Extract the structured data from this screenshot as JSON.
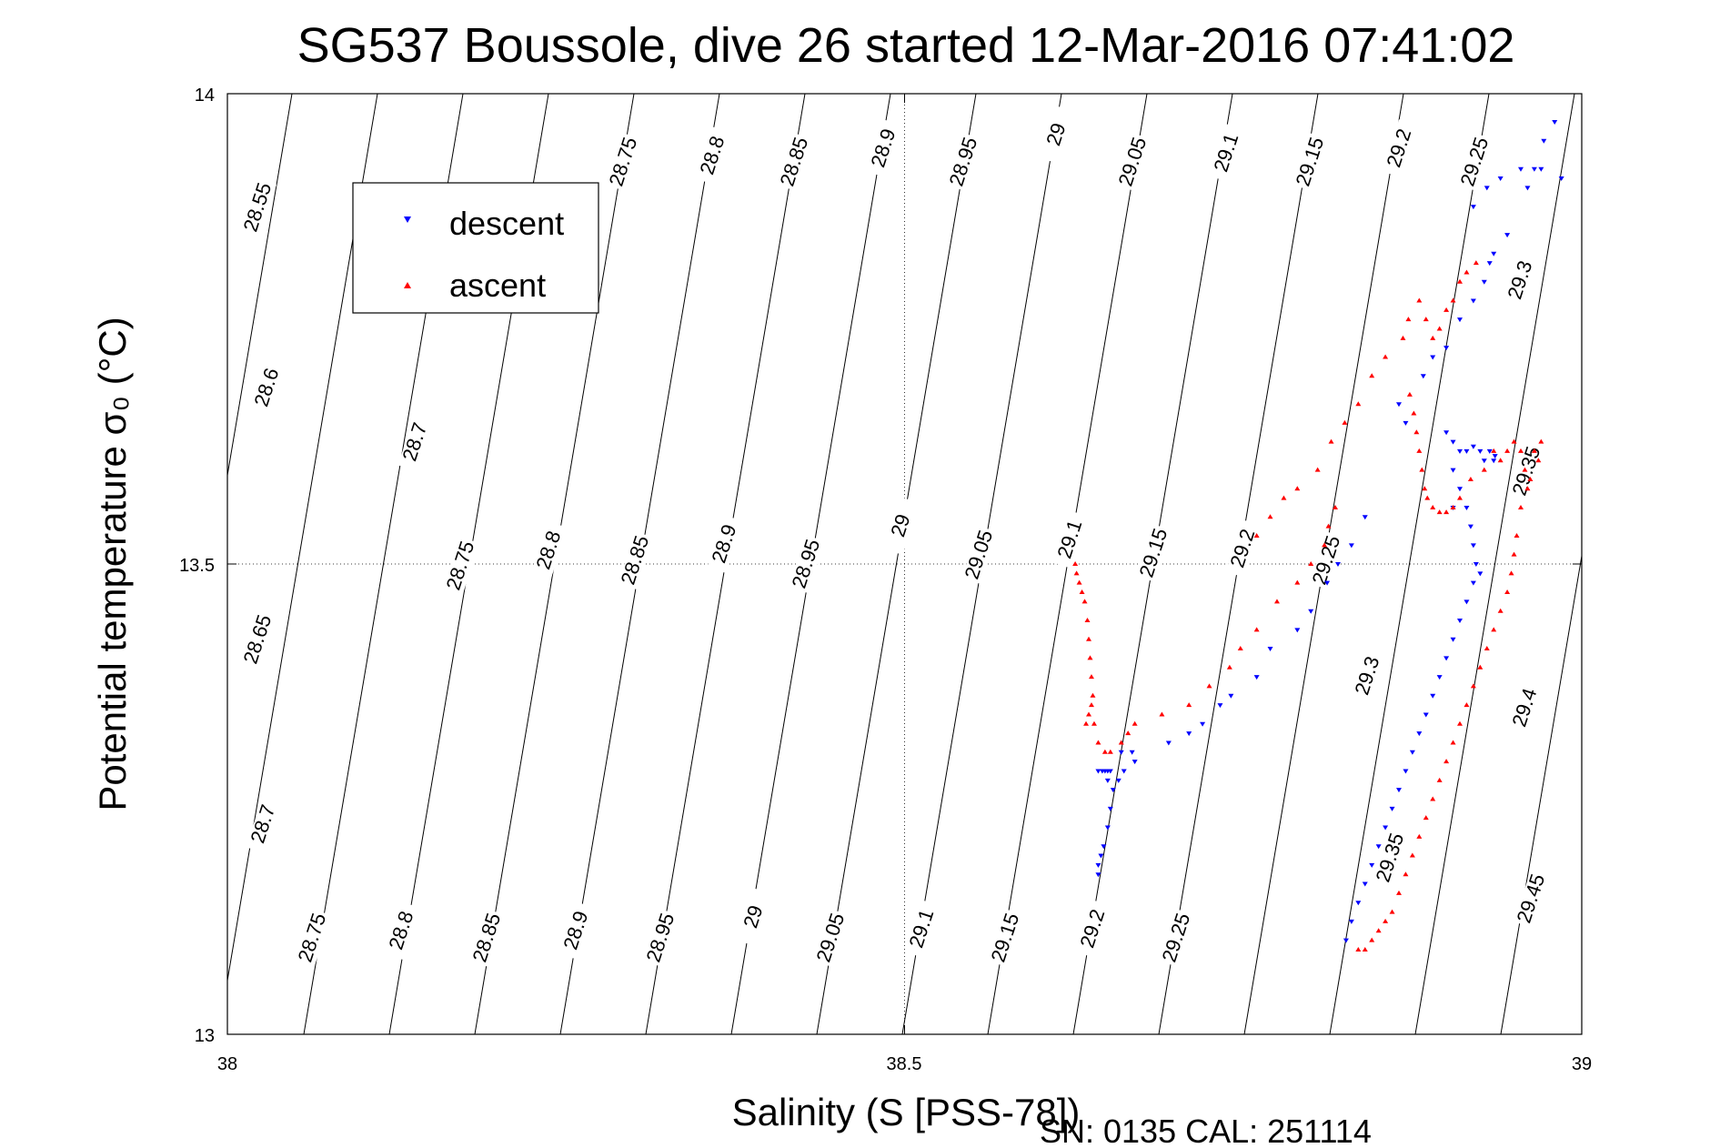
{
  "chart_data": {
    "type": "scatter",
    "title": "SG537 Boussole, dive 26 started 12-Mar-2016 07:41:02",
    "xlabel": "Salinity (S [PSS-78])",
    "ylabel": "Potential temperature σ₀ (°C)",
    "xlim": [
      38,
      39
    ],
    "ylim": [
      13,
      14
    ],
    "xticks": [
      "38",
      "38.5",
      "39"
    ],
    "yticks": [
      "13",
      "13.5",
      "14"
    ],
    "grid": true,
    "legend_position": "top-left",
    "footer": "SN: 0135  CAL: 251114",
    "isopycnal_labels": [
      "28.55",
      "28.6",
      "28.65",
      "28.7",
      "28.75",
      "28.8",
      "28.85",
      "28.9",
      "28.95",
      "29",
      "29.05",
      "29.1",
      "29.15",
      "29.2",
      "29.25",
      "29.3",
      "29.35",
      "29.4",
      "29.45"
    ],
    "series": [
      {
        "name": "descent",
        "color": "#0000ff",
        "marker": "triangle-down",
        "points": [
          [
            38.643,
            13.17
          ],
          [
            38.643,
            13.18
          ],
          [
            38.645,
            13.19
          ],
          [
            38.647,
            13.2
          ],
          [
            38.65,
            13.22
          ],
          [
            38.652,
            13.24
          ],
          [
            38.654,
            13.26
          ],
          [
            38.658,
            13.27
          ],
          [
            38.662,
            13.28
          ],
          [
            38.643,
            13.28
          ],
          [
            38.646,
            13.28
          ],
          [
            38.648,
            13.28
          ],
          [
            38.65,
            13.28
          ],
          [
            38.652,
            13.28
          ],
          [
            38.65,
            13.27
          ],
          [
            38.66,
            13.3
          ],
          [
            38.668,
            13.3
          ],
          [
            38.67,
            13.29
          ],
          [
            38.695,
            13.31
          ],
          [
            38.71,
            13.32
          ],
          [
            38.72,
            13.33
          ],
          [
            38.733,
            13.35
          ],
          [
            38.741,
            13.36
          ],
          [
            38.76,
            13.38
          ],
          [
            38.77,
            13.41
          ],
          [
            38.79,
            13.43
          ],
          [
            38.8,
            13.45
          ],
          [
            38.812,
            13.48
          ],
          [
            38.82,
            13.5
          ],
          [
            38.83,
            13.52
          ],
          [
            38.84,
            13.55
          ],
          [
            38.865,
            13.67
          ],
          [
            38.87,
            13.65
          ],
          [
            38.883,
            13.7
          ],
          [
            38.89,
            13.72
          ],
          [
            38.9,
            13.73
          ],
          [
            38.91,
            13.76
          ],
          [
            38.92,
            13.78
          ],
          [
            38.928,
            13.8
          ],
          [
            38.932,
            13.82
          ],
          [
            38.935,
            13.83
          ],
          [
            38.945,
            13.85
          ],
          [
            38.96,
            13.9
          ],
          [
            38.965,
            13.92
          ],
          [
            38.972,
            13.95
          ],
          [
            38.98,
            13.97
          ],
          [
            38.92,
            13.88
          ],
          [
            38.93,
            13.9
          ],
          [
            38.94,
            13.91
          ],
          [
            38.955,
            13.92
          ],
          [
            38.97,
            13.92
          ],
          [
            38.985,
            13.91
          ],
          [
            38.9,
            13.64
          ],
          [
            38.905,
            13.63
          ],
          [
            38.91,
            13.62
          ],
          [
            38.915,
            13.62
          ],
          [
            38.92,
            13.625
          ],
          [
            38.925,
            13.62
          ],
          [
            38.928,
            13.61
          ],
          [
            38.932,
            13.62
          ],
          [
            38.936,
            13.615
          ],
          [
            38.905,
            13.6
          ],
          [
            38.91,
            13.58
          ],
          [
            38.915,
            13.56
          ],
          [
            38.918,
            13.54
          ],
          [
            38.92,
            13.52
          ],
          [
            38.922,
            13.5
          ],
          [
            38.925,
            13.49
          ],
          [
            38.92,
            13.48
          ],
          [
            38.915,
            13.46
          ],
          [
            38.91,
            13.44
          ],
          [
            38.905,
            13.42
          ],
          [
            38.9,
            13.4
          ],
          [
            38.895,
            13.38
          ],
          [
            38.89,
            13.36
          ],
          [
            38.885,
            13.34
          ],
          [
            38.88,
            13.32
          ],
          [
            38.875,
            13.3
          ],
          [
            38.87,
            13.28
          ],
          [
            38.865,
            13.26
          ],
          [
            38.86,
            13.24
          ],
          [
            38.855,
            13.22
          ],
          [
            38.85,
            13.2
          ],
          [
            38.845,
            13.18
          ],
          [
            38.84,
            13.16
          ],
          [
            38.835,
            13.14
          ],
          [
            38.83,
            13.12
          ],
          [
            38.826,
            13.1
          ],
          [
            38.905,
            13.56
          ],
          [
            38.935,
            13.61
          ]
        ]
      },
      {
        "name": "ascent",
        "color": "#ff0000",
        "marker": "triangle-up",
        "points": [
          [
            38.626,
            13.5
          ],
          [
            38.627,
            13.49
          ],
          [
            38.629,
            13.48
          ],
          [
            38.631,
            13.47
          ],
          [
            38.633,
            13.46
          ],
          [
            38.635,
            13.44
          ],
          [
            38.636,
            13.42
          ],
          [
            38.637,
            13.4
          ],
          [
            38.638,
            13.38
          ],
          [
            38.639,
            13.36
          ],
          [
            38.638,
            13.35
          ],
          [
            38.636,
            13.34
          ],
          [
            38.634,
            13.33
          ],
          [
            38.64,
            13.33
          ],
          [
            38.643,
            13.31
          ],
          [
            38.648,
            13.3
          ],
          [
            38.652,
            13.3
          ],
          [
            38.66,
            13.31
          ],
          [
            38.665,
            13.32
          ],
          [
            38.67,
            13.33
          ],
          [
            38.69,
            13.34
          ],
          [
            38.71,
            13.35
          ],
          [
            38.725,
            13.37
          ],
          [
            38.74,
            13.39
          ],
          [
            38.748,
            13.41
          ],
          [
            38.76,
            13.43
          ],
          [
            38.775,
            13.46
          ],
          [
            38.79,
            13.48
          ],
          [
            38.8,
            13.5
          ],
          [
            38.81,
            13.52
          ],
          [
            38.813,
            13.54
          ],
          [
            38.818,
            13.56
          ],
          [
            38.76,
            13.53
          ],
          [
            38.77,
            13.55
          ],
          [
            38.78,
            13.57
          ],
          [
            38.79,
            13.58
          ],
          [
            38.805,
            13.6
          ],
          [
            38.815,
            13.63
          ],
          [
            38.825,
            13.65
          ],
          [
            38.835,
            13.67
          ],
          [
            38.845,
            13.7
          ],
          [
            38.855,
            13.72
          ],
          [
            38.868,
            13.74
          ],
          [
            38.872,
            13.76
          ],
          [
            38.88,
            13.78
          ],
          [
            38.885,
            13.76
          ],
          [
            38.89,
            13.74
          ],
          [
            38.895,
            13.75
          ],
          [
            38.9,
            13.77
          ],
          [
            38.905,
            13.78
          ],
          [
            38.91,
            13.8
          ],
          [
            38.915,
            13.81
          ],
          [
            38.922,
            13.82
          ],
          [
            38.873,
            13.68
          ],
          [
            38.876,
            13.66
          ],
          [
            38.878,
            13.64
          ],
          [
            38.88,
            13.62
          ],
          [
            38.882,
            13.6
          ],
          [
            38.884,
            13.58
          ],
          [
            38.886,
            13.57
          ],
          [
            38.89,
            13.56
          ],
          [
            38.895,
            13.555
          ],
          [
            38.9,
            13.555
          ],
          [
            38.905,
            13.56
          ],
          [
            38.91,
            13.57
          ],
          [
            38.918,
            13.59
          ],
          [
            38.928,
            13.6
          ],
          [
            38.935,
            13.62
          ],
          [
            38.94,
            13.61
          ],
          [
            38.945,
            13.62
          ],
          [
            38.95,
            13.63
          ],
          [
            38.955,
            13.62
          ],
          [
            38.958,
            13.6
          ],
          [
            38.962,
            13.59
          ],
          [
            38.965,
            13.62
          ],
          [
            38.968,
            13.61
          ],
          [
            38.97,
            13.63
          ],
          [
            38.96,
            13.58
          ],
          [
            38.955,
            13.56
          ],
          [
            38.952,
            13.53
          ],
          [
            38.95,
            13.51
          ],
          [
            38.948,
            13.49
          ],
          [
            38.945,
            13.47
          ],
          [
            38.94,
            13.45
          ],
          [
            38.935,
            13.43
          ],
          [
            38.93,
            13.41
          ],
          [
            38.925,
            13.39
          ],
          [
            38.92,
            13.37
          ],
          [
            38.915,
            13.35
          ],
          [
            38.91,
            13.33
          ],
          [
            38.905,
            13.31
          ],
          [
            38.9,
            13.29
          ],
          [
            38.895,
            13.27
          ],
          [
            38.89,
            13.25
          ],
          [
            38.885,
            13.23
          ],
          [
            38.88,
            13.21
          ],
          [
            38.875,
            13.19
          ],
          [
            38.87,
            13.17
          ],
          [
            38.865,
            13.15
          ],
          [
            38.86,
            13.13
          ],
          [
            38.855,
            13.12
          ],
          [
            38.85,
            13.11
          ],
          [
            38.845,
            13.1
          ],
          [
            38.84,
            13.09
          ],
          [
            38.835,
            13.09
          ]
        ]
      }
    ]
  }
}
